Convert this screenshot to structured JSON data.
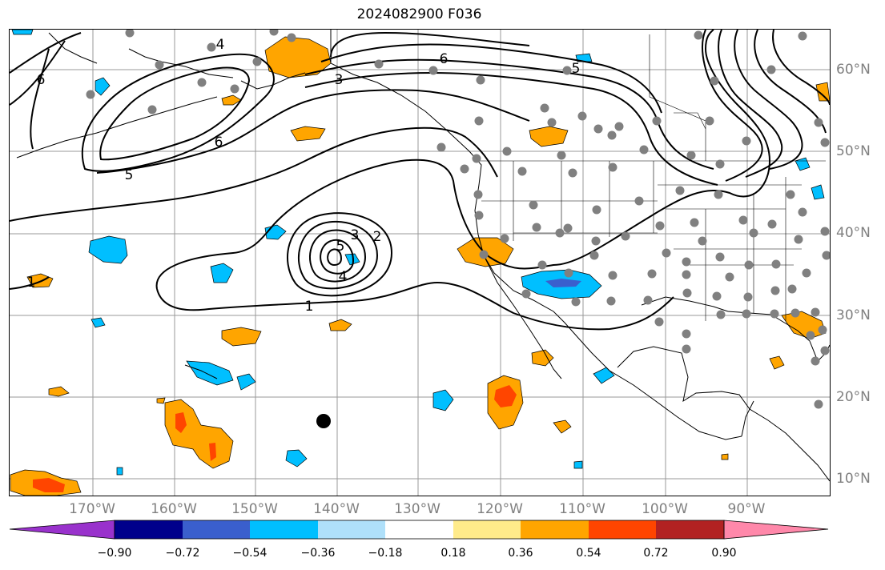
{
  "title": "2024082900 F036",
  "map": {
    "lon_labels": [
      "170°W",
      "160°W",
      "150°W",
      "140°W",
      "130°W",
      "120°W",
      "110°W",
      "100°W",
      "90°W"
    ],
    "lat_labels": [
      "60°N",
      "50°N",
      "40°N",
      "30°N",
      "20°N",
      "10°N"
    ],
    "contour_labels": [
      "1",
      "2",
      "3",
      "4",
      "5",
      "6"
    ],
    "contour_color": "#000000",
    "station_color": "#808080"
  },
  "colorbar": {
    "ticks": [
      "−0.90",
      "−0.72",
      "−0.54",
      "−0.36",
      "−0.18",
      "0.18",
      "0.36",
      "0.54",
      "0.72",
      "0.90"
    ],
    "colors": [
      "#9932cc",
      "#00008b",
      "#3a5fcd",
      "#00bfff",
      "#afe0fa",
      "#ffffff",
      "#ffeb8a",
      "#ffa500",
      "#ff4500",
      "#b22222",
      "#ff88aa"
    ]
  }
}
